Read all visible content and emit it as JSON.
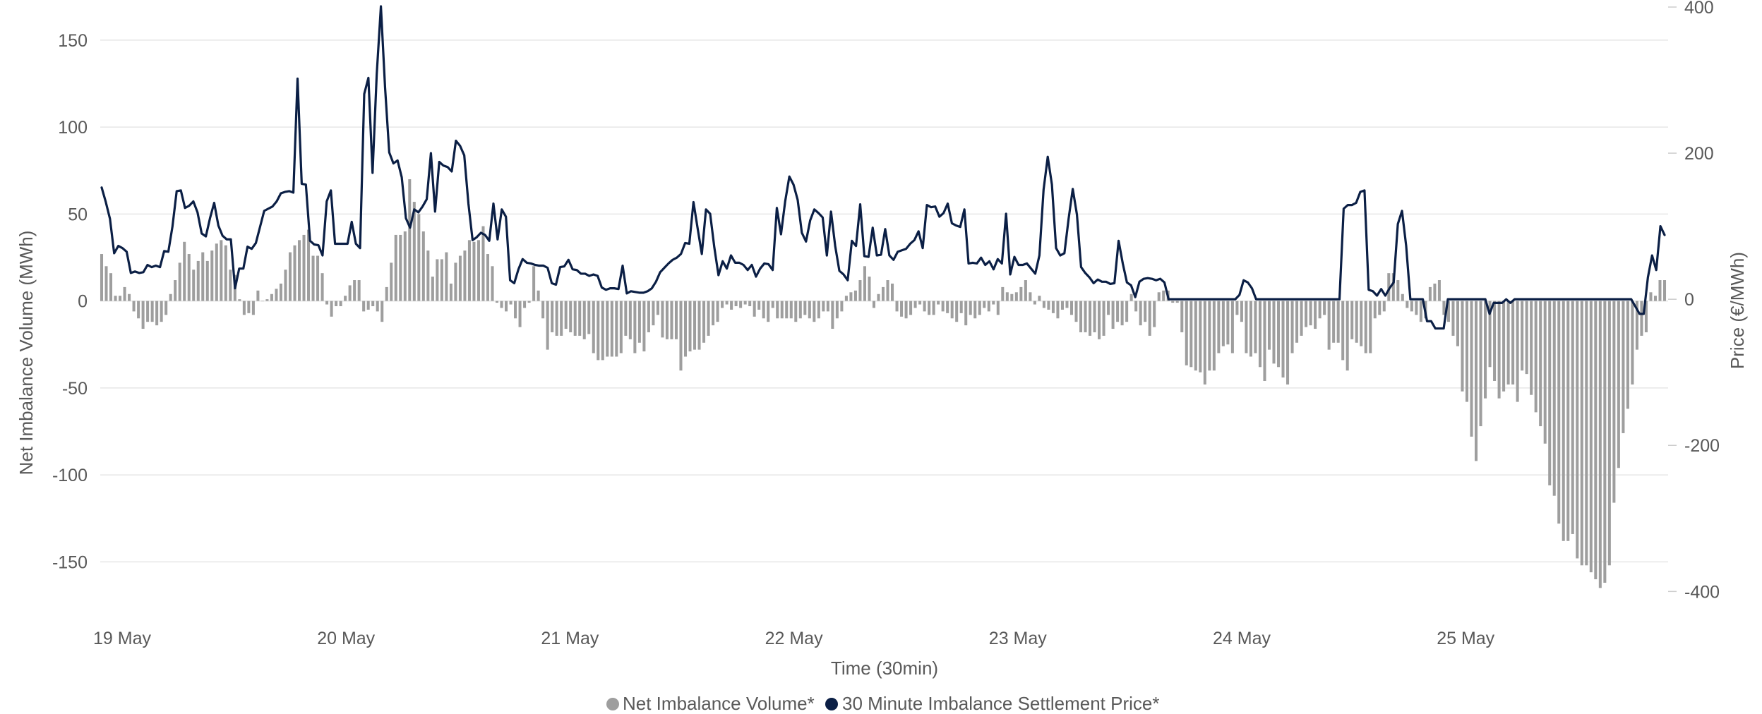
{
  "chart_data": {
    "type": "bar",
    "title": "",
    "xlabel": "Time (30min)",
    "ylabel_left": "Net Imbalance Volume (MWh)",
    "ylabel_right": "Price (€/MWh)",
    "x_tick_labels": [
      "19 May",
      "20 May",
      "21 May",
      "22 May",
      "23 May",
      "24 May",
      "25 May"
    ],
    "y_left": {
      "ticks": [
        150,
        100,
        50,
        0,
        -50,
        -100,
        -150
      ],
      "tick_labels": [
        "150",
        "100",
        "50",
        "0",
        "-50",
        "-100",
        "-150"
      ],
      "lim": [
        -175,
        169
      ]
    },
    "y_right": {
      "ticks": [
        400,
        200,
        0,
        -200,
        -400
      ],
      "tick_labels": [
        "400",
        "200",
        "0",
        "-200",
        "-400"
      ],
      "lim": [
        -419,
        400
      ]
    },
    "grid": true,
    "legend_position": "bottom-center",
    "series": [
      {
        "name": "Net Imbalance Volume*",
        "type": "bar",
        "axis": "left",
        "color": "#9e9e9e",
        "values": [
          27,
          20,
          16,
          3,
          3,
          8,
          4,
          -6,
          -10,
          -16,
          -12,
          -12,
          -14,
          -12,
          -8,
          4,
          12,
          22,
          34,
          27,
          18,
          23,
          28,
          23,
          29,
          33,
          35,
          32,
          18,
          15,
          1,
          -8,
          -7,
          -8,
          6,
          0,
          1,
          4,
          7,
          10,
          18,
          28,
          32,
          35,
          38,
          41,
          26,
          26,
          16,
          -2,
          -9,
          -3,
          -3,
          3,
          9,
          12,
          12,
          -6,
          -5,
          -3,
          -6,
          -12,
          8,
          22,
          38,
          38,
          40,
          70,
          57,
          50,
          40,
          29,
          14,
          24,
          24,
          28,
          10,
          22,
          26,
          29,
          35,
          34,
          35,
          43,
          27,
          20,
          -1,
          -4,
          -6,
          -2,
          -10,
          -15,
          -4,
          -1,
          20,
          6,
          -10,
          -28,
          -18,
          -20,
          -20,
          -16,
          -18,
          -20,
          -20,
          -22,
          -19,
          -30,
          -34,
          -34,
          -32,
          -32,
          -32,
          -30,
          -20,
          -22,
          -30,
          -24,
          -29,
          -18,
          -14,
          -8,
          -21,
          -22,
          -22,
          -22,
          -40,
          -32,
          -29,
          -28,
          -28,
          -24,
          -20,
          -14,
          -12,
          -4,
          -2,
          -5,
          -3,
          -4,
          -2,
          -3,
          -9,
          -5,
          -10,
          -12,
          -4,
          -10,
          -10,
          -10,
          -10,
          -12,
          -10,
          -8,
          -10,
          -12,
          -10,
          -6,
          -6,
          -16,
          -10,
          -6,
          3,
          5,
          6,
          12,
          20,
          14,
          -4,
          4,
          8,
          12,
          10,
          -6,
          -9,
          -10,
          -8,
          -4,
          -2,
          -6,
          -8,
          -8,
          -2,
          -6,
          -7,
          -10,
          -12,
          -7,
          -14,
          -8,
          -10,
          -8,
          -4,
          -6,
          -2,
          -8,
          8,
          5,
          4,
          5,
          8,
          12,
          5,
          -2,
          3,
          -4,
          -5,
          -7,
          -10,
          -5,
          -4,
          -8,
          -12,
          -18,
          -18,
          -20,
          -18,
          -22,
          -20,
          -8,
          -16,
          -12,
          -14,
          -12,
          4,
          -6,
          -14,
          -12,
          -20,
          -15,
          5,
          6,
          6,
          -1,
          -1,
          -18,
          -37,
          -38,
          -40,
          -41,
          -48,
          -40,
          -40,
          -30,
          -26,
          -25,
          -30,
          -8,
          -12,
          -30,
          -32,
          -30,
          -38,
          -46,
          -28,
          -36,
          -38,
          -44,
          -48,
          -30,
          -24,
          -20,
          -15,
          -14,
          -16,
          -10,
          -8,
          -28,
          -24,
          -24,
          -34,
          -40,
          -22,
          -24,
          -26,
          -30,
          -30,
          -10,
          -8,
          -6,
          16,
          16,
          12,
          4,
          -4,
          -6,
          -8,
          -12,
          -10,
          8,
          10,
          12,
          -8,
          -12,
          -20,
          -26,
          -52,
          -58,
          -78,
          -92,
          -72,
          -56,
          -38,
          -46,
          -56,
          -52,
          -48,
          -48,
          -58,
          -40,
          -42,
          -54,
          -64,
          -72,
          -82,
          -106,
          -112,
          -128,
          -138,
          -138,
          -134,
          -148,
          -152,
          -152,
          -156,
          -160,
          -165,
          -162,
          -152,
          -116,
          -96,
          -76,
          -62,
          -48,
          -28,
          -20,
          -18,
          5,
          3,
          12,
          12
        ]
      },
      {
        "name": "30 Minute Imbalance Settlement Price*",
        "type": "line",
        "axis": "right",
        "color": "#0b1f45",
        "values": [
          153,
          133,
          110,
          63,
          73,
          70,
          65,
          36,
          38,
          36,
          37,
          47,
          44,
          46,
          44,
          66,
          65,
          100,
          148,
          149,
          125,
          128,
          134,
          119,
          90,
          86,
          111,
          132,
          101,
          87,
          82,
          82,
          15,
          42,
          42,
          72,
          69,
          77,
          99,
          121,
          124,
          127,
          134,
          145,
          147,
          148,
          146,
          302,
          158,
          157,
          80,
          75,
          74,
          60,
          134,
          149,
          76,
          76,
          76,
          76,
          106,
          76,
          70,
          281,
          303,
          173,
          308,
          401,
          290,
          201,
          186,
          190,
          167,
          111,
          98,
          123,
          119,
          127,
          137,
          200,
          120,
          188,
          183,
          181,
          175,
          217,
          210,
          197,
          131,
          81,
          85,
          91,
          88,
          80,
          131,
          82,
          123,
          113,
          26,
          22,
          41,
          55,
          50,
          49,
          47,
          46,
          46,
          43,
          22,
          20,
          44,
          45,
          54,
          41,
          40,
          35,
          35,
          32,
          34,
          32,
          16,
          13,
          15,
          15,
          14,
          46,
          8,
          11,
          10,
          9,
          9,
          11,
          15,
          24,
          37,
          43,
          49,
          54,
          57,
          62,
          77,
          76,
          133,
          97,
          62,
          123,
          117,
          71,
          33,
          52,
          42,
          60,
          50,
          50,
          47,
          40,
          47,
          31,
          42,
          49,
          48,
          40,
          125,
          89,
          134,
          168,
          157,
          136,
          91,
          79,
          108,
          123,
          118,
          112,
          60,
          120,
          73,
          39,
          34,
          26,
          80,
          73,
          130,
          59,
          58,
          98,
          60,
          61,
          96,
          60,
          54,
          65,
          67,
          69,
          76,
          81,
          93,
          70,
          129,
          126,
          127,
          113,
          118,
          131,
          104,
          101,
          99,
          123,
          49,
          50,
          49,
          57,
          47,
          52,
          41,
          55,
          49,
          117,
          34,
          58,
          47,
          47,
          49,
          42,
          35,
          60,
          150,
          195,
          157,
          70,
          60,
          63,
          110,
          151,
          116,
          44,
          36,
          30,
          22,
          27,
          24,
          24,
          21,
          22,
          80,
          49,
          23,
          19,
          3,
          24,
          28,
          29,
          28,
          26,
          28,
          23,
          0,
          0,
          0,
          0,
          0,
          0,
          0,
          0,
          0,
          0,
          0,
          0,
          0,
          0,
          0,
          0,
          0,
          6,
          26,
          23,
          15,
          0,
          0,
          0,
          0,
          0,
          0,
          0,
          0,
          0,
          0,
          0,
          0,
          0,
          0,
          0,
          0,
          0,
          0,
          0,
          0,
          0,
          124,
          129,
          129,
          132,
          147,
          149,
          13,
          11,
          5,
          14,
          5,
          15,
          23,
          103,
          121,
          73,
          0,
          0,
          0,
          0,
          -30,
          -30,
          -40,
          -40,
          -40,
          0,
          0,
          0,
          0,
          0,
          0,
          0,
          0,
          0,
          0,
          -20,
          -5,
          -5,
          -5,
          0,
          -5,
          0,
          0,
          0,
          0,
          0,
          0,
          0,
          0,
          0,
          0,
          0,
          0,
          0,
          0,
          0,
          0,
          0,
          0,
          0,
          0,
          0,
          0,
          0,
          0,
          0,
          0,
          0,
          0,
          0,
          -10,
          -20,
          -20,
          30,
          60,
          40,
          100,
          88
        ]
      }
    ]
  }
}
